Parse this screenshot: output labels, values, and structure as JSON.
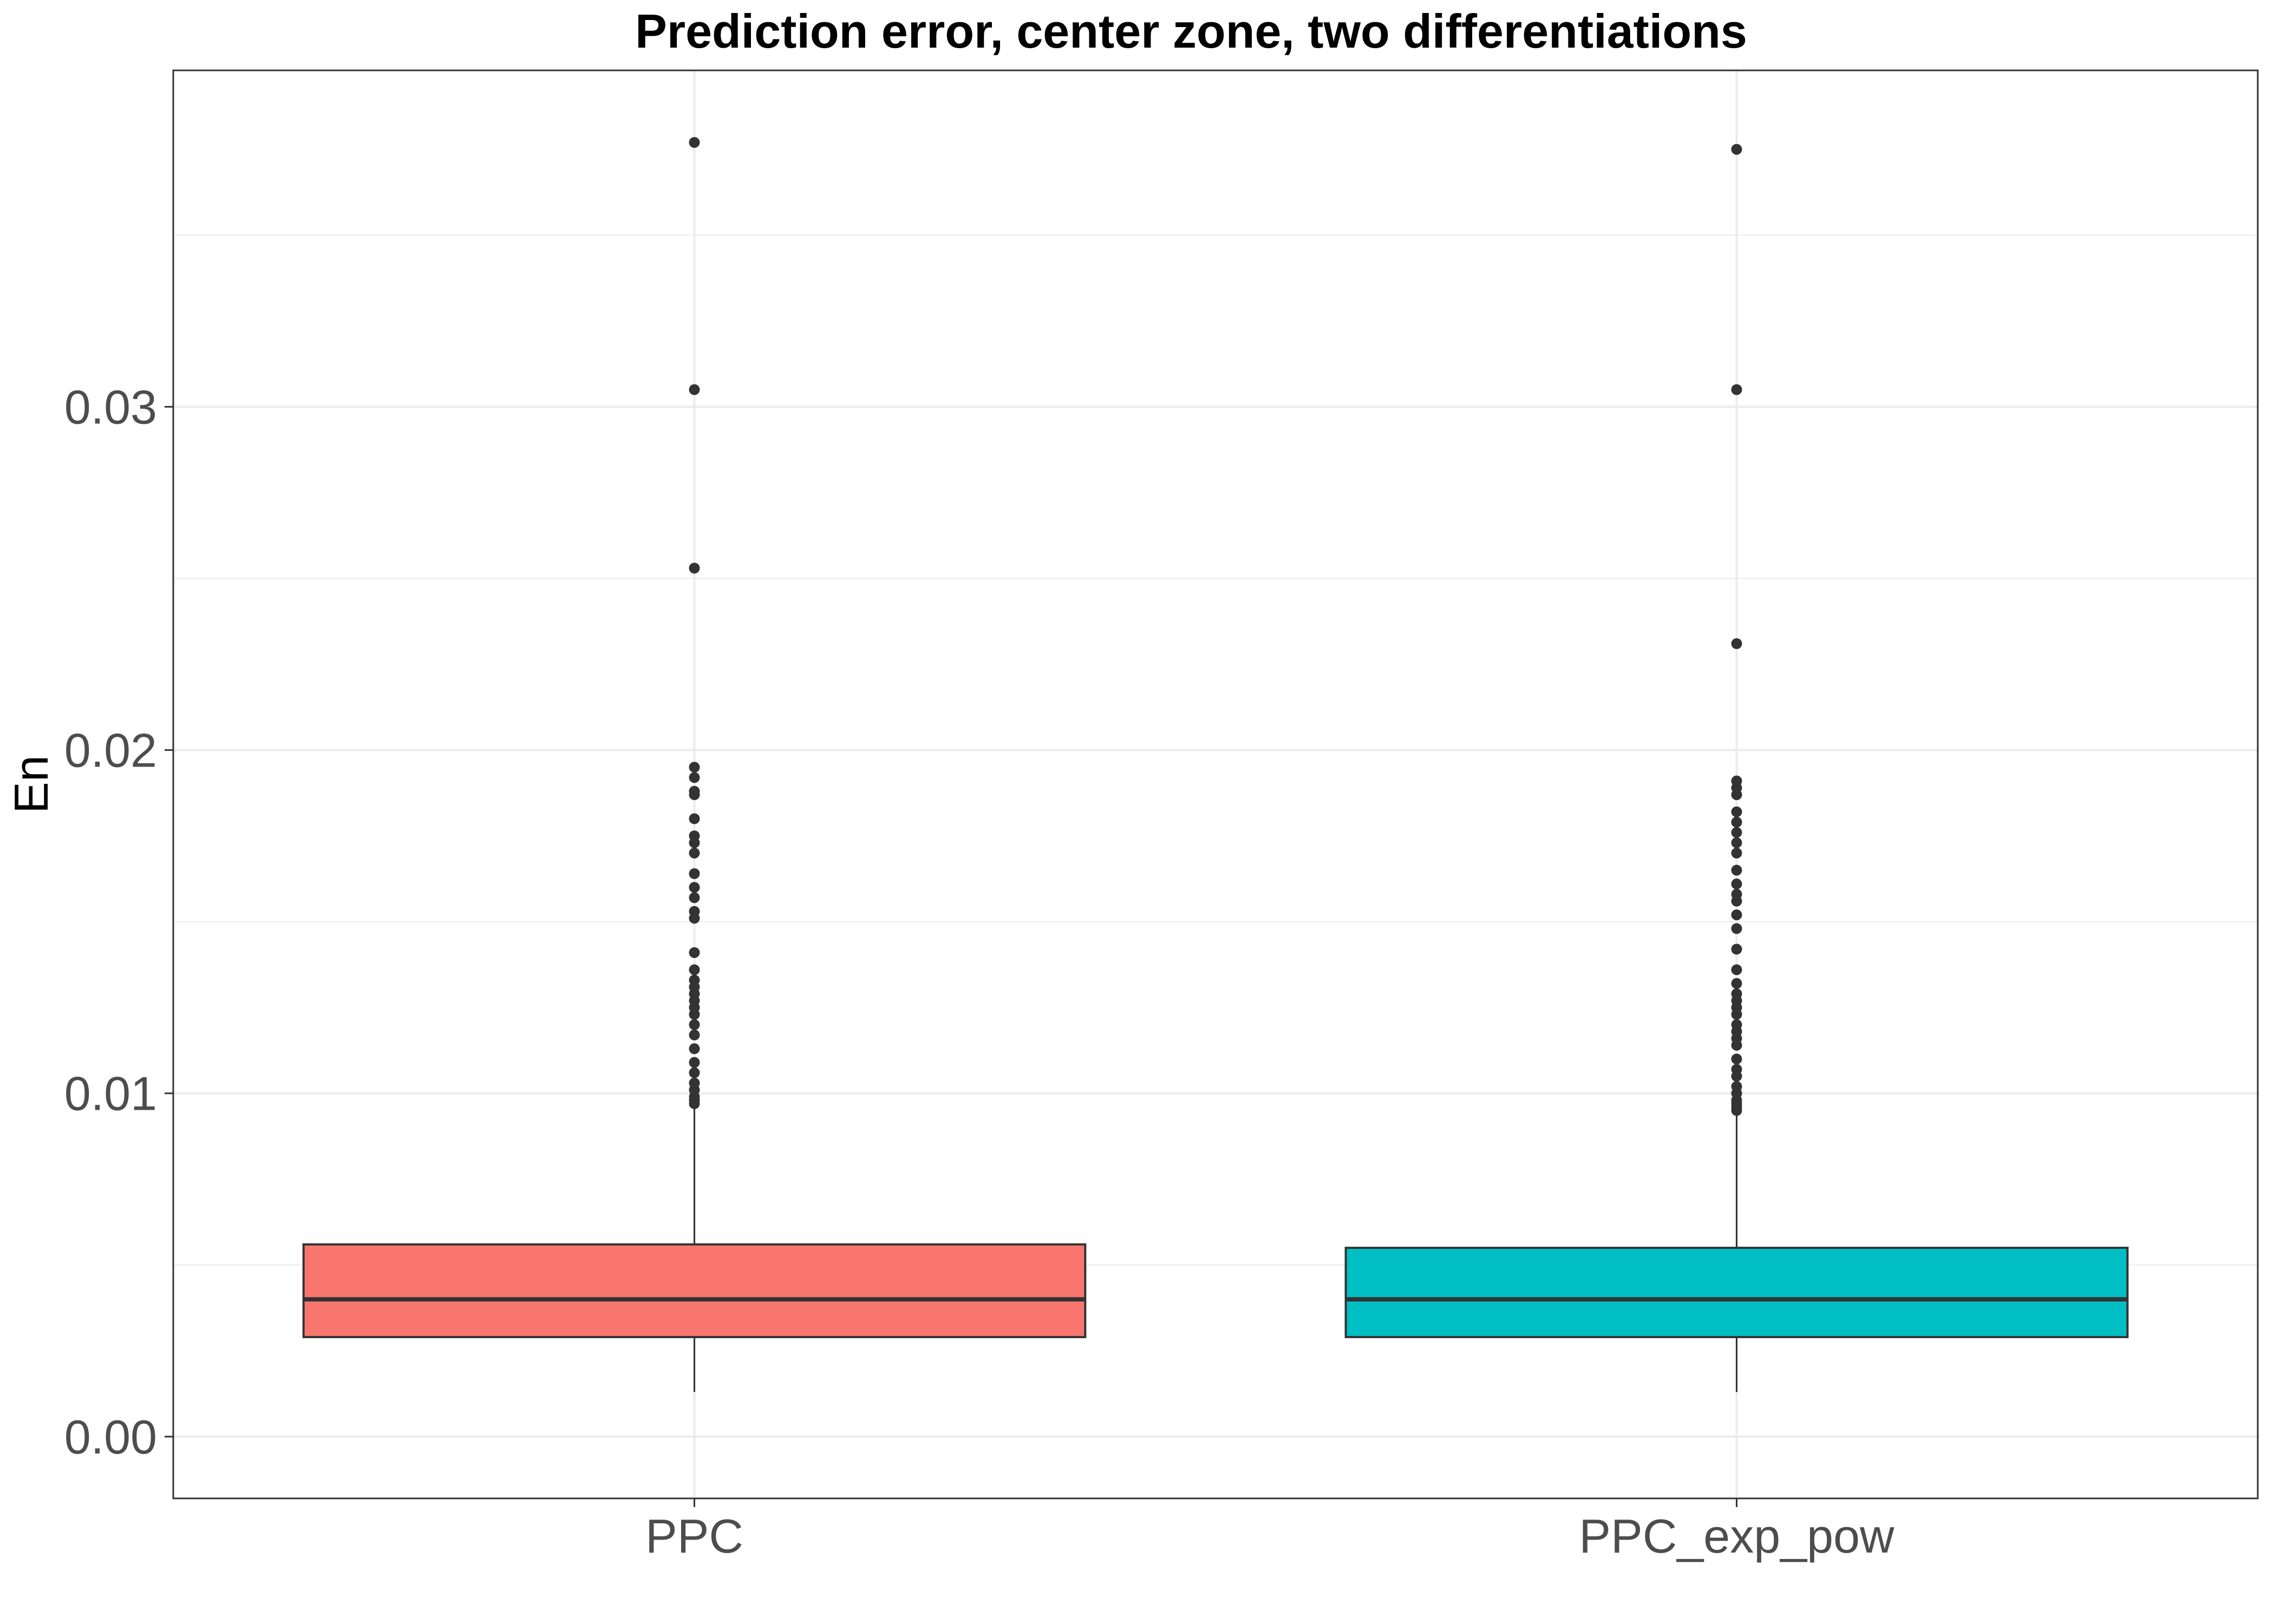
{
  "chart_data": {
    "type": "box",
    "title": "Prediction error, center zone, two differentiations",
    "xlabel": "",
    "ylabel": "En",
    "ylim": [
      -0.0018,
      0.0398
    ],
    "y_ticks": [
      0.0,
      0.01,
      0.02,
      0.03
    ],
    "y_tick_labels": [
      "0.00",
      "0.01",
      "0.02",
      "0.03"
    ],
    "categories": [
      "PPC",
      "PPC_exp_pow"
    ],
    "grid": true,
    "legend": "none",
    "series": [
      {
        "category": "PPC",
        "color": "#F8766D",
        "whisker_low": 0.0013,
        "q1": 0.0029,
        "median": 0.004,
        "q3": 0.0056,
        "whisker_high": 0.0096,
        "outliers": [
          0.0377,
          0.0305,
          0.0253,
          0.0195,
          0.0192,
          0.0188,
          0.0187,
          0.018,
          0.0175,
          0.0173,
          0.017,
          0.0164,
          0.016,
          0.0157,
          0.0153,
          0.0151,
          0.0141,
          0.0136,
          0.0133,
          0.0131,
          0.0129,
          0.0127,
          0.0125,
          0.0123,
          0.012,
          0.0117,
          0.0113,
          0.0109,
          0.0106,
          0.0103,
          0.0101,
          0.0099,
          0.0098,
          0.0097
        ]
      },
      {
        "category": "PPC_exp_pow",
        "color": "#00BFC4",
        "whisker_low": 0.0013,
        "q1": 0.0029,
        "median": 0.004,
        "q3": 0.0055,
        "whisker_high": 0.0094,
        "outliers": [
          0.0375,
          0.0305,
          0.0231,
          0.0191,
          0.0189,
          0.0187,
          0.0182,
          0.0179,
          0.0176,
          0.0173,
          0.017,
          0.0165,
          0.0161,
          0.0158,
          0.0156,
          0.0152,
          0.0148,
          0.0142,
          0.0136,
          0.0132,
          0.0129,
          0.0127,
          0.0125,
          0.0123,
          0.012,
          0.0118,
          0.0116,
          0.0114,
          0.011,
          0.0107,
          0.0105,
          0.0102,
          0.01,
          0.0098,
          0.0097,
          0.0096,
          0.0095
        ]
      }
    ],
    "colors": {
      "outline": "#333333",
      "outlier": "#333333",
      "grid": "#EBEBEB",
      "panel_border": "#333333"
    }
  }
}
